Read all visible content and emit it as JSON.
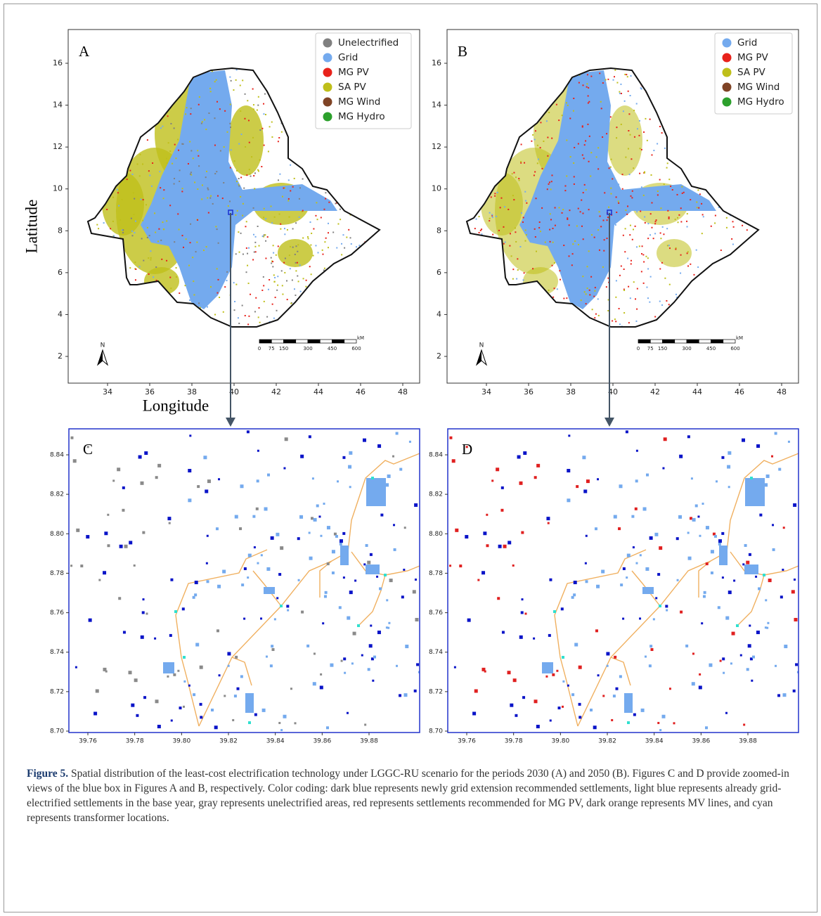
{
  "axis_labels": {
    "latitude": "Latitude",
    "longitude": "Longitude"
  },
  "map_panels": [
    {
      "label": "A",
      "legend": [
        {
          "name": "Unelectrified",
          "color": "#808080"
        },
        {
          "name": "Grid",
          "color": "#74aaee"
        },
        {
          "name": "MG PV",
          "color": "#e8221b"
        },
        {
          "name": "SA PV",
          "color": "#bfbf1a"
        },
        {
          "name": "MG Wind",
          "color": "#7f4325"
        },
        {
          "name": "MG Hydro",
          "color": "#2ca02c"
        }
      ],
      "xticks": [
        34,
        36,
        38,
        40,
        42,
        44,
        46,
        48
      ],
      "yticks": [
        2,
        4,
        6,
        8,
        10,
        12,
        14,
        16
      ],
      "north": "N",
      "scale": {
        "labels": [
          0,
          75,
          150,
          300,
          450,
          600
        ],
        "unit": "kM"
      }
    },
    {
      "label": "B",
      "legend": [
        {
          "name": "Grid",
          "color": "#74aaee"
        },
        {
          "name": "MG PV",
          "color": "#e8221b"
        },
        {
          "name": "SA PV",
          "color": "#bfbf1a"
        },
        {
          "name": "MG Wind",
          "color": "#7f4325"
        },
        {
          "name": "MG Hydro",
          "color": "#2ca02c"
        }
      ],
      "xticks": [
        34,
        36,
        38,
        40,
        42,
        44,
        46,
        48
      ],
      "yticks": [
        2,
        4,
        6,
        8,
        10,
        12,
        14,
        16
      ],
      "north": "N",
      "scale": {
        "labels": [
          0,
          75,
          150,
          300,
          450,
          600
        ],
        "unit": "kM"
      }
    }
  ],
  "zoom_panels": [
    {
      "label": "C",
      "xticks": [
        39.76,
        39.78,
        {
          "value": 39.8,
          "label": "39.80"
        },
        39.82,
        39.84,
        39.86,
        39.88
      ],
      "yticks": [
        8.84,
        8.82,
        {
          "value": 8.8,
          "label": "8.80"
        },
        8.78,
        8.76,
        8.74,
        8.72,
        {
          "value": 8.7,
          "label": "8.70"
        }
      ]
    },
    {
      "label": "D",
      "xticks": [
        39.76,
        39.78,
        {
          "value": 39.8,
          "label": "39.80"
        },
        39.82,
        39.84,
        39.86,
        39.88
      ],
      "yticks": [
        8.84,
        8.82,
        {
          "value": 8.8,
          "label": "8.80"
        },
        8.78,
        8.76,
        8.74,
        8.72,
        {
          "value": 8.7,
          "label": "8.70"
        }
      ]
    }
  ],
  "caption": {
    "label": "Figure 5.",
    "text": "Spatial distribution of the least-cost electrification technology under LGGC-RU scenario for the periods 2030 (A) and 2050 (B). Figures C and D provide zoomed-in views of the blue box in Figures A and B, respectively. Color coding: dark blue represents newly grid extension recommended settlements, light blue represents already grid-electrified settlements in the base year, gray represents unelectrified areas, red represents settlements recommended for MG PV, dark orange represents MV lines, and cyan represents transformer locations."
  }
}
